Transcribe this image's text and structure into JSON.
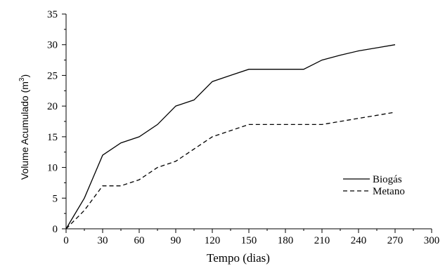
{
  "chart_data": {
    "type": "line",
    "title": "",
    "xlabel": "Tempo (dias)",
    "ylabel": {
      "main": "Volume Acumulado  (m",
      "superscript": "3",
      "close": ")"
    },
    "xlim": [
      0,
      300
    ],
    "ylim": [
      0,
      35
    ],
    "xticks": [
      0,
      30,
      60,
      90,
      120,
      150,
      180,
      210,
      240,
      270,
      300
    ],
    "yticks": [
      0,
      5,
      10,
      15,
      20,
      25,
      30,
      35
    ],
    "grid": false,
    "legend_position": "right",
    "series": [
      {
        "name": "Biogás",
        "style": "solid",
        "color": "#000000",
        "points": [
          [
            0,
            0
          ],
          [
            15,
            5
          ],
          [
            30,
            12
          ],
          [
            45,
            14
          ],
          [
            60,
            15
          ],
          [
            75,
            17
          ],
          [
            90,
            20
          ],
          [
            105,
            21
          ],
          [
            120,
            24
          ],
          [
            135,
            25
          ],
          [
            150,
            26
          ],
          [
            165,
            26
          ],
          [
            180,
            26
          ],
          [
            195,
            26
          ],
          [
            210,
            27.5
          ],
          [
            225,
            28.3
          ],
          [
            240,
            29
          ],
          [
            255,
            29.5
          ],
          [
            270,
            30
          ]
        ]
      },
      {
        "name": "Metano",
        "style": "dashed",
        "color": "#000000",
        "points": [
          [
            0,
            0
          ],
          [
            15,
            3
          ],
          [
            30,
            7
          ],
          [
            45,
            7
          ],
          [
            60,
            8
          ],
          [
            75,
            10
          ],
          [
            90,
            11
          ],
          [
            105,
            13
          ],
          [
            120,
            15
          ],
          [
            135,
            16
          ],
          [
            150,
            17
          ],
          [
            165,
            17
          ],
          [
            180,
            17
          ],
          [
            195,
            17
          ],
          [
            210,
            17
          ],
          [
            225,
            17.5
          ],
          [
            240,
            18
          ],
          [
            255,
            18.5
          ],
          [
            270,
            19
          ]
        ]
      }
    ]
  }
}
